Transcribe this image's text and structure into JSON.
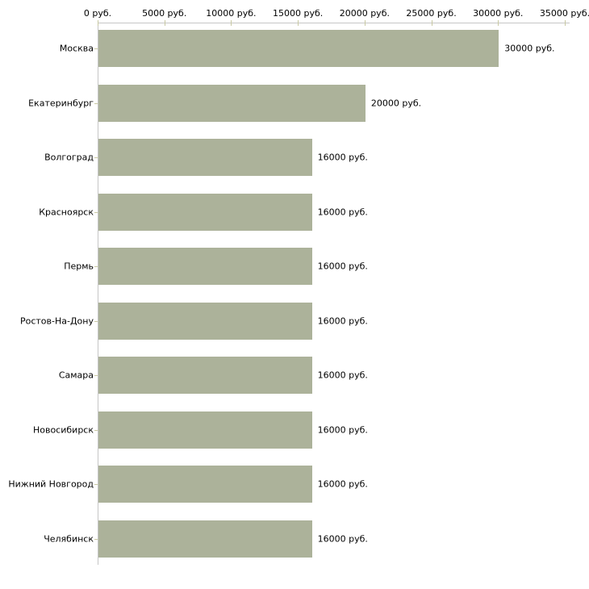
{
  "chart_data": {
    "type": "bar",
    "orientation": "horizontal",
    "categories": [
      "Москва",
      "Екатеринбург",
      "Волгоград",
      "Красноярск",
      "Пермь",
      "Ростов-На-Дону",
      "Самара",
      "Новосибирск",
      "Нижний Новгород",
      "Челябинск"
    ],
    "values": [
      30000,
      20000,
      16000,
      16000,
      16000,
      16000,
      16000,
      16000,
      16000,
      16000
    ],
    "value_labels": [
      "30000 руб.",
      "20000 руб.",
      "16000 руб.",
      "16000 руб.",
      "16000 руб.",
      "16000 руб.",
      "16000 руб.",
      "16000 руб.",
      "16000 руб.",
      "16000 руб."
    ],
    "unit": "руб.",
    "xlim": [
      0,
      35000
    ],
    "x_ticks": [
      {
        "value": 0,
        "label": "0 руб."
      },
      {
        "value": 5000,
        "label": "5000 руб."
      },
      {
        "value": 10000,
        "label": "10000 руб."
      },
      {
        "value": 15000,
        "label": "15000 руб."
      },
      {
        "value": 20000,
        "label": "20000 руб."
      },
      {
        "value": 25000,
        "label": "25000 руб."
      },
      {
        "value": 30000,
        "label": "30000 руб."
      },
      {
        "value": 35000,
        "label": "35000 руб."
      }
    ],
    "grid": false,
    "legend": null,
    "axis_position": "top",
    "bar_color": "#acb29a",
    "axis_color": "#c6c6c6",
    "tick_color": "#c9c9a3",
    "text_color": "#000000",
    "background_color": "#ffffff"
  }
}
